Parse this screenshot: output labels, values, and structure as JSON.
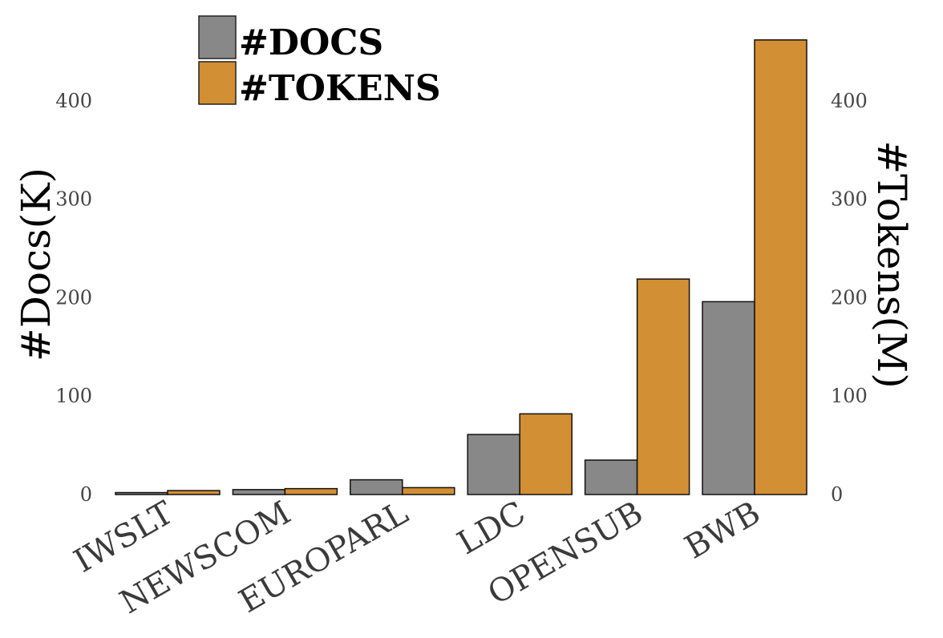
{
  "chart_data": {
    "type": "bar",
    "categories": [
      "IWSLT",
      "NEWSCOM",
      "EUROPARL",
      "LDC",
      "OPENSUB",
      "BWB"
    ],
    "series": [
      {
        "name": "#DOCS",
        "axis": "left",
        "color": "#888888",
        "values": [
          2,
          5,
          15,
          61,
          35,
          196
        ]
      },
      {
        "name": "#TOKENS",
        "axis": "right",
        "color": "#D38F33",
        "values": [
          4,
          6,
          7,
          82,
          219,
          462
        ]
      }
    ],
    "ylabel": "#Docs(K)",
    "ylabel_right": "#Tokens(M)",
    "ylim": [
      0,
      470
    ],
    "ylim_right": [
      0,
      470
    ],
    "yticks": [
      0,
      100,
      200,
      300,
      400
    ],
    "yticks_right": [
      0,
      100,
      200,
      300,
      400
    ],
    "grid": false,
    "legend_position": "top-left"
  }
}
